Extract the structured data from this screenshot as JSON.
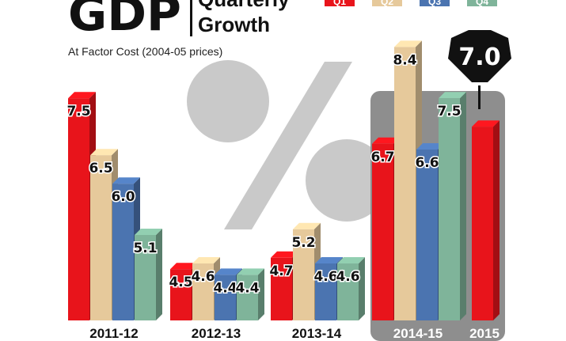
{
  "header": {
    "title_main": "GDP",
    "title_line1": "Quarterly",
    "title_line2": "Growth",
    "subtitle": "At Factor Cost (2004-05 prices)"
  },
  "legend": [
    "Q1",
    "Q2",
    "Q3",
    "Q4"
  ],
  "colors": {
    "Q1": "#e8141b",
    "Q2": "#e6c99b",
    "Q3": "#4b74b0",
    "Q4": "#7fb49a",
    "highlight_bg": "#8e8e8e",
    "percent_sign": "#c9c9c9",
    "badge": "#111111"
  },
  "highlight": {
    "badge_value": "7.0",
    "highlighted_groups": [
      "2014-15",
      "2015"
    ]
  },
  "chart_data": {
    "type": "bar",
    "title": "GDP Quarterly Growth",
    "subtitle": "At Factor Cost (2004-05 prices)",
    "categories": [
      "2011-12",
      "2012-13",
      "2013-14",
      "2014-15",
      "2015"
    ],
    "series": [
      {
        "name": "Q1",
        "values": [
          7.5,
          4.5,
          4.7,
          6.7,
          7.0
        ]
      },
      {
        "name": "Q2",
        "values": [
          6.5,
          4.6,
          5.2,
          8.4,
          null
        ]
      },
      {
        "name": "Q3",
        "values": [
          6.0,
          4.4,
          4.6,
          6.6,
          null
        ]
      },
      {
        "name": "Q4",
        "values": [
          5.1,
          4.4,
          4.6,
          7.5,
          null
        ]
      }
    ],
    "data_labels": [
      [
        "7.5",
        "6.5",
        "6.0",
        "5.1"
      ],
      [
        "4.5",
        "4.6",
        "4.4",
        "4.4"
      ],
      [
        "4.7",
        "5.2",
        "4.6",
        "4.6"
      ],
      [
        "6.7",
        "8.4",
        "6.6",
        "7.5"
      ],
      [
        ""
      ]
    ],
    "ylim": [
      3.6,
      8.4
    ],
    "grid": false,
    "legend_position": "top-right"
  }
}
